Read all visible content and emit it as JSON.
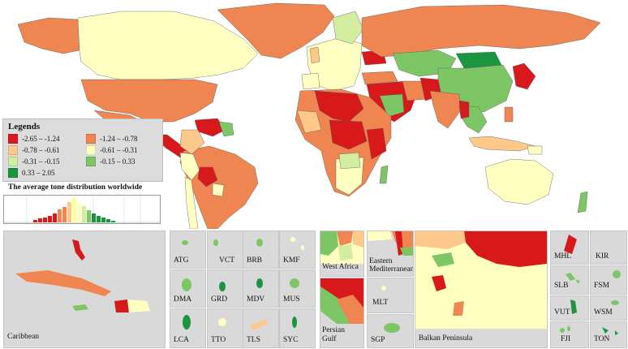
{
  "legend": {
    "title": "Legends",
    "items": [
      {
        "label": "-2.65 – -1.24",
        "color": "#d7191c"
      },
      {
        "label": "-1.24 – -0.78",
        "color": "#ef8550"
      },
      {
        "label": "-0.78 – -0.61",
        "color": "#fdc98b"
      },
      {
        "label": "-0.61 – -0.31",
        "color": "#ffffc2"
      },
      {
        "label": "-0.31 – -0.15",
        "color": "#d2eda0"
      },
      {
        "label": "-0.15 – 0.33",
        "color": "#7dc666"
      },
      {
        "label": "0.33 – 2.05",
        "color": "#1a9641"
      }
    ]
  },
  "distribution": {
    "title": "The average tone distribution worldwide"
  },
  "insets": {
    "caribbean": "Caribbean",
    "small": [
      "ATG",
      "VCT",
      "BRB",
      "KMF",
      "DMA",
      "GRD",
      "MDV",
      "MUS",
      "LCA",
      "TTO",
      "TLS",
      "SYC"
    ],
    "west_africa": "West Africa",
    "eastern_med_1": "Eastern",
    "eastern_med_2": "Mediterranean",
    "persian_1": "Persian",
    "persian_2": "Gulf",
    "mlt": "MLT",
    "sgp": "SGP",
    "balkan": "Balkan Peninsula",
    "pacific": [
      "MHL",
      "KIR",
      "SLB",
      "FSM",
      "VUT",
      "WSM",
      "FJI",
      "TON"
    ]
  }
}
